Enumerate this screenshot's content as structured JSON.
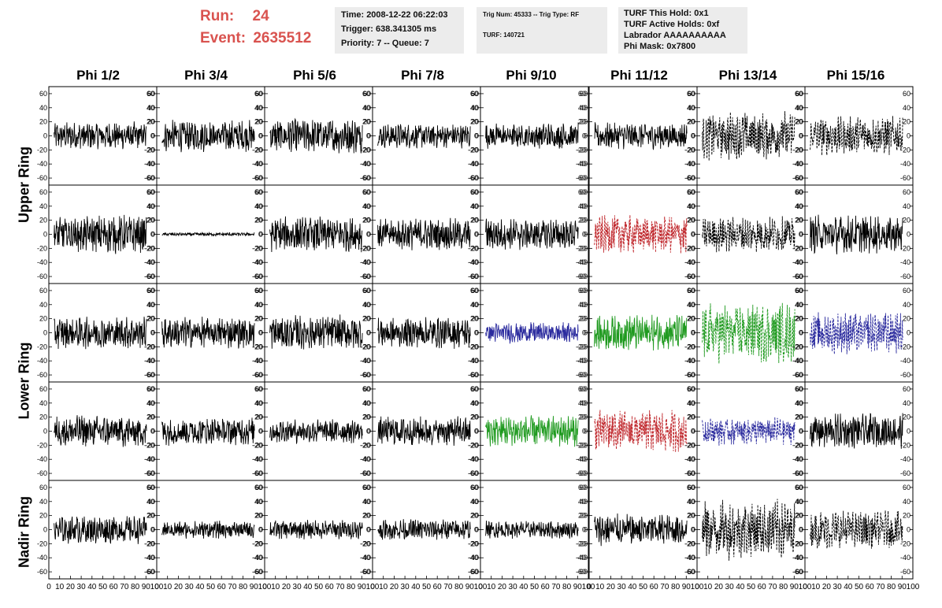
{
  "header": {
    "run_label": "Run:",
    "run_value": "24",
    "event_label": "Event:",
    "event_value": "2635512",
    "time": "Time: 2008-12-22 06:22:03",
    "trigger": "Trigger: 638.341305 ms",
    "priority": "Priority: 7 -- Queue: 7",
    "trig_num": "Trig Num: 45333 -- Trig Type: RF",
    "turf": "TURF: 140721",
    "turf_hold": "TURF This Hold: 0x1",
    "turf_active": "TURF Active Holds: 0xf",
    "labrador": "Labrador AAAAAAAAAA",
    "phi_mask": "Phi Mask: 0x7800"
  },
  "colors": {
    "header_red": "#d9534f",
    "black": "#000000",
    "red": "#c0282d",
    "blue": "#2b2b9e",
    "green": "#1f9a1f"
  },
  "chart_data": {
    "type": "line",
    "columns": [
      "Phi 1/2",
      "Phi 3/4",
      "Phi 5/6",
      "Phi 7/8",
      "Phi 9/10",
      "Phi 11/12",
      "Phi 13/14",
      "Phi 15/16"
    ],
    "row_labels": [
      "Upper Ring",
      "Lower Ring",
      "Nadir Ring"
    ],
    "xlim": [
      0,
      100
    ],
    "ylim": [
      -70,
      70
    ],
    "y_ticks": [
      -60,
      -40,
      -20,
      0,
      20,
      40,
      60
    ],
    "x_tick_labels": [
      "0",
      "10",
      "20",
      "30",
      "40",
      "50",
      "60",
      "70",
      "80",
      "90",
      "100"
    ],
    "panels": [
      [
        {
          "color": "black",
          "dash": false,
          "amp": 16
        },
        {
          "color": "black",
          "dash": false,
          "amp": 18
        },
        {
          "color": "black",
          "dash": false,
          "amp": 20
        },
        {
          "color": "black",
          "dash": false,
          "amp": 14
        },
        {
          "color": "black",
          "dash": false,
          "amp": 15
        },
        {
          "color": "black",
          "dash": false,
          "amp": 15
        },
        {
          "color": "black",
          "dash": true,
          "amp": 28
        },
        {
          "color": "black",
          "dash": true,
          "amp": 22
        }
      ],
      [
        {
          "color": "black",
          "dash": false,
          "amp": 22
        },
        {
          "color": "black",
          "dash": false,
          "amp": 2
        },
        {
          "color": "black",
          "dash": false,
          "amp": 20
        },
        {
          "color": "black",
          "dash": false,
          "amp": 18
        },
        {
          "color": "black",
          "dash": false,
          "amp": 18
        },
        {
          "color": "red",
          "dash": true,
          "amp": 22
        },
        {
          "color": "black",
          "dash": true,
          "amp": 20
        },
        {
          "color": "black",
          "dash": false,
          "amp": 22
        }
      ],
      [
        {
          "color": "black",
          "dash": false,
          "amp": 18
        },
        {
          "color": "black",
          "dash": false,
          "amp": 18
        },
        {
          "color": "black",
          "dash": false,
          "amp": 20
        },
        {
          "color": "black",
          "dash": false,
          "amp": 18
        },
        {
          "color": "blue",
          "dash": false,
          "amp": 12
        },
        {
          "color": "green",
          "dash": false,
          "amp": 20
        },
        {
          "color": "green",
          "dash": true,
          "amp": 34
        },
        {
          "color": "blue",
          "dash": true,
          "amp": 24
        }
      ],
      [
        {
          "color": "black",
          "dash": false,
          "amp": 18
        },
        {
          "color": "black",
          "dash": false,
          "amp": 16
        },
        {
          "color": "black",
          "dash": false,
          "amp": 14
        },
        {
          "color": "black",
          "dash": false,
          "amp": 17
        },
        {
          "color": "green",
          "dash": false,
          "amp": 18
        },
        {
          "color": "red",
          "dash": true,
          "amp": 24
        },
        {
          "color": "blue",
          "dash": true,
          "amp": 16
        },
        {
          "color": "black",
          "dash": false,
          "amp": 20
        }
      ],
      [
        {
          "color": "black",
          "dash": false,
          "amp": 16
        },
        {
          "color": "black",
          "dash": false,
          "amp": 10
        },
        {
          "color": "black",
          "dash": false,
          "amp": 11
        },
        {
          "color": "black",
          "dash": false,
          "amp": 12
        },
        {
          "color": "black",
          "dash": false,
          "amp": 10
        },
        {
          "color": "black",
          "dash": false,
          "amp": 18
        },
        {
          "color": "black",
          "dash": true,
          "amp": 34
        },
        {
          "color": "black",
          "dash": true,
          "amp": 22
        }
      ]
    ]
  }
}
